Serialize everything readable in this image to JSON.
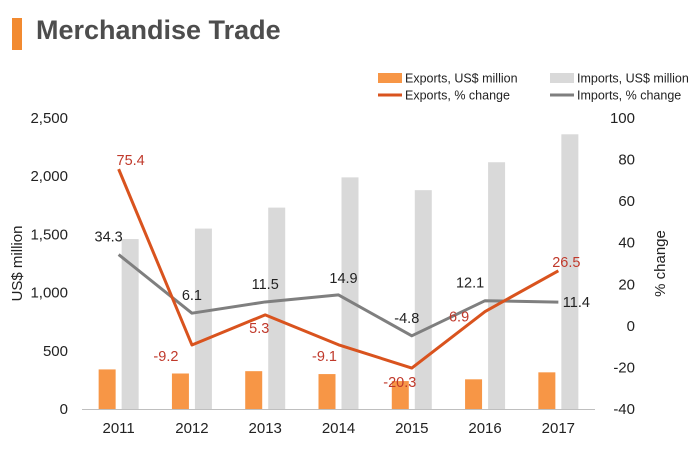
{
  "page_title": "Merchandise Trade",
  "chart_data": {
    "type": "bar",
    "categories": [
      "2011",
      "2012",
      "2013",
      "2014",
      "2015",
      "2016",
      "2017"
    ],
    "series": [
      {
        "name": "Exports, US$ million",
        "kind": "bar",
        "axis": "left",
        "color": "#F79646",
        "values": [
          340,
          305,
          325,
          300,
          240,
          255,
          315
        ]
      },
      {
        "name": "Imports, US$ million",
        "kind": "bar",
        "axis": "left",
        "color": "#D9D9D9",
        "values": [
          1460,
          1550,
          1730,
          1990,
          1880,
          2120,
          2360
        ]
      },
      {
        "name": "Exports, % change",
        "kind": "line",
        "axis": "right",
        "color": "#D9531E",
        "values": [
          75.4,
          -9.2,
          5.3,
          -9.1,
          -20.3,
          6.9,
          26.5
        ],
        "labels": [
          "75.4",
          "-9.2",
          "5.3",
          "-9.1",
          "-20.3",
          "6.9",
          "26.5"
        ]
      },
      {
        "name": "Imports, % change",
        "kind": "line",
        "axis": "right",
        "color": "#7F7F7F",
        "values": [
          34.3,
          6.1,
          11.5,
          14.9,
          -4.8,
          12.1,
          11.4
        ],
        "labels": [
          "34.3",
          "6.1",
          "11.5",
          "14.9",
          "-4.8",
          "12.1",
          "11.4"
        ]
      }
    ],
    "ylabel": "US$ million",
    "ylabel_right": "% change",
    "ylim": [
      0,
      2500
    ],
    "yticks": [
      "0",
      "500",
      "1,000",
      "1,500",
      "2,000",
      "2,500"
    ],
    "ylim_right": [
      -40,
      100
    ],
    "yticks_right": [
      "-40",
      "-20",
      "0",
      "20",
      "40",
      "60",
      "80",
      "100"
    ],
    "grid": false,
    "legend_position": "top-right",
    "label_colors": {
      "exports": "#C0392B",
      "imports": "#222222"
    }
  }
}
